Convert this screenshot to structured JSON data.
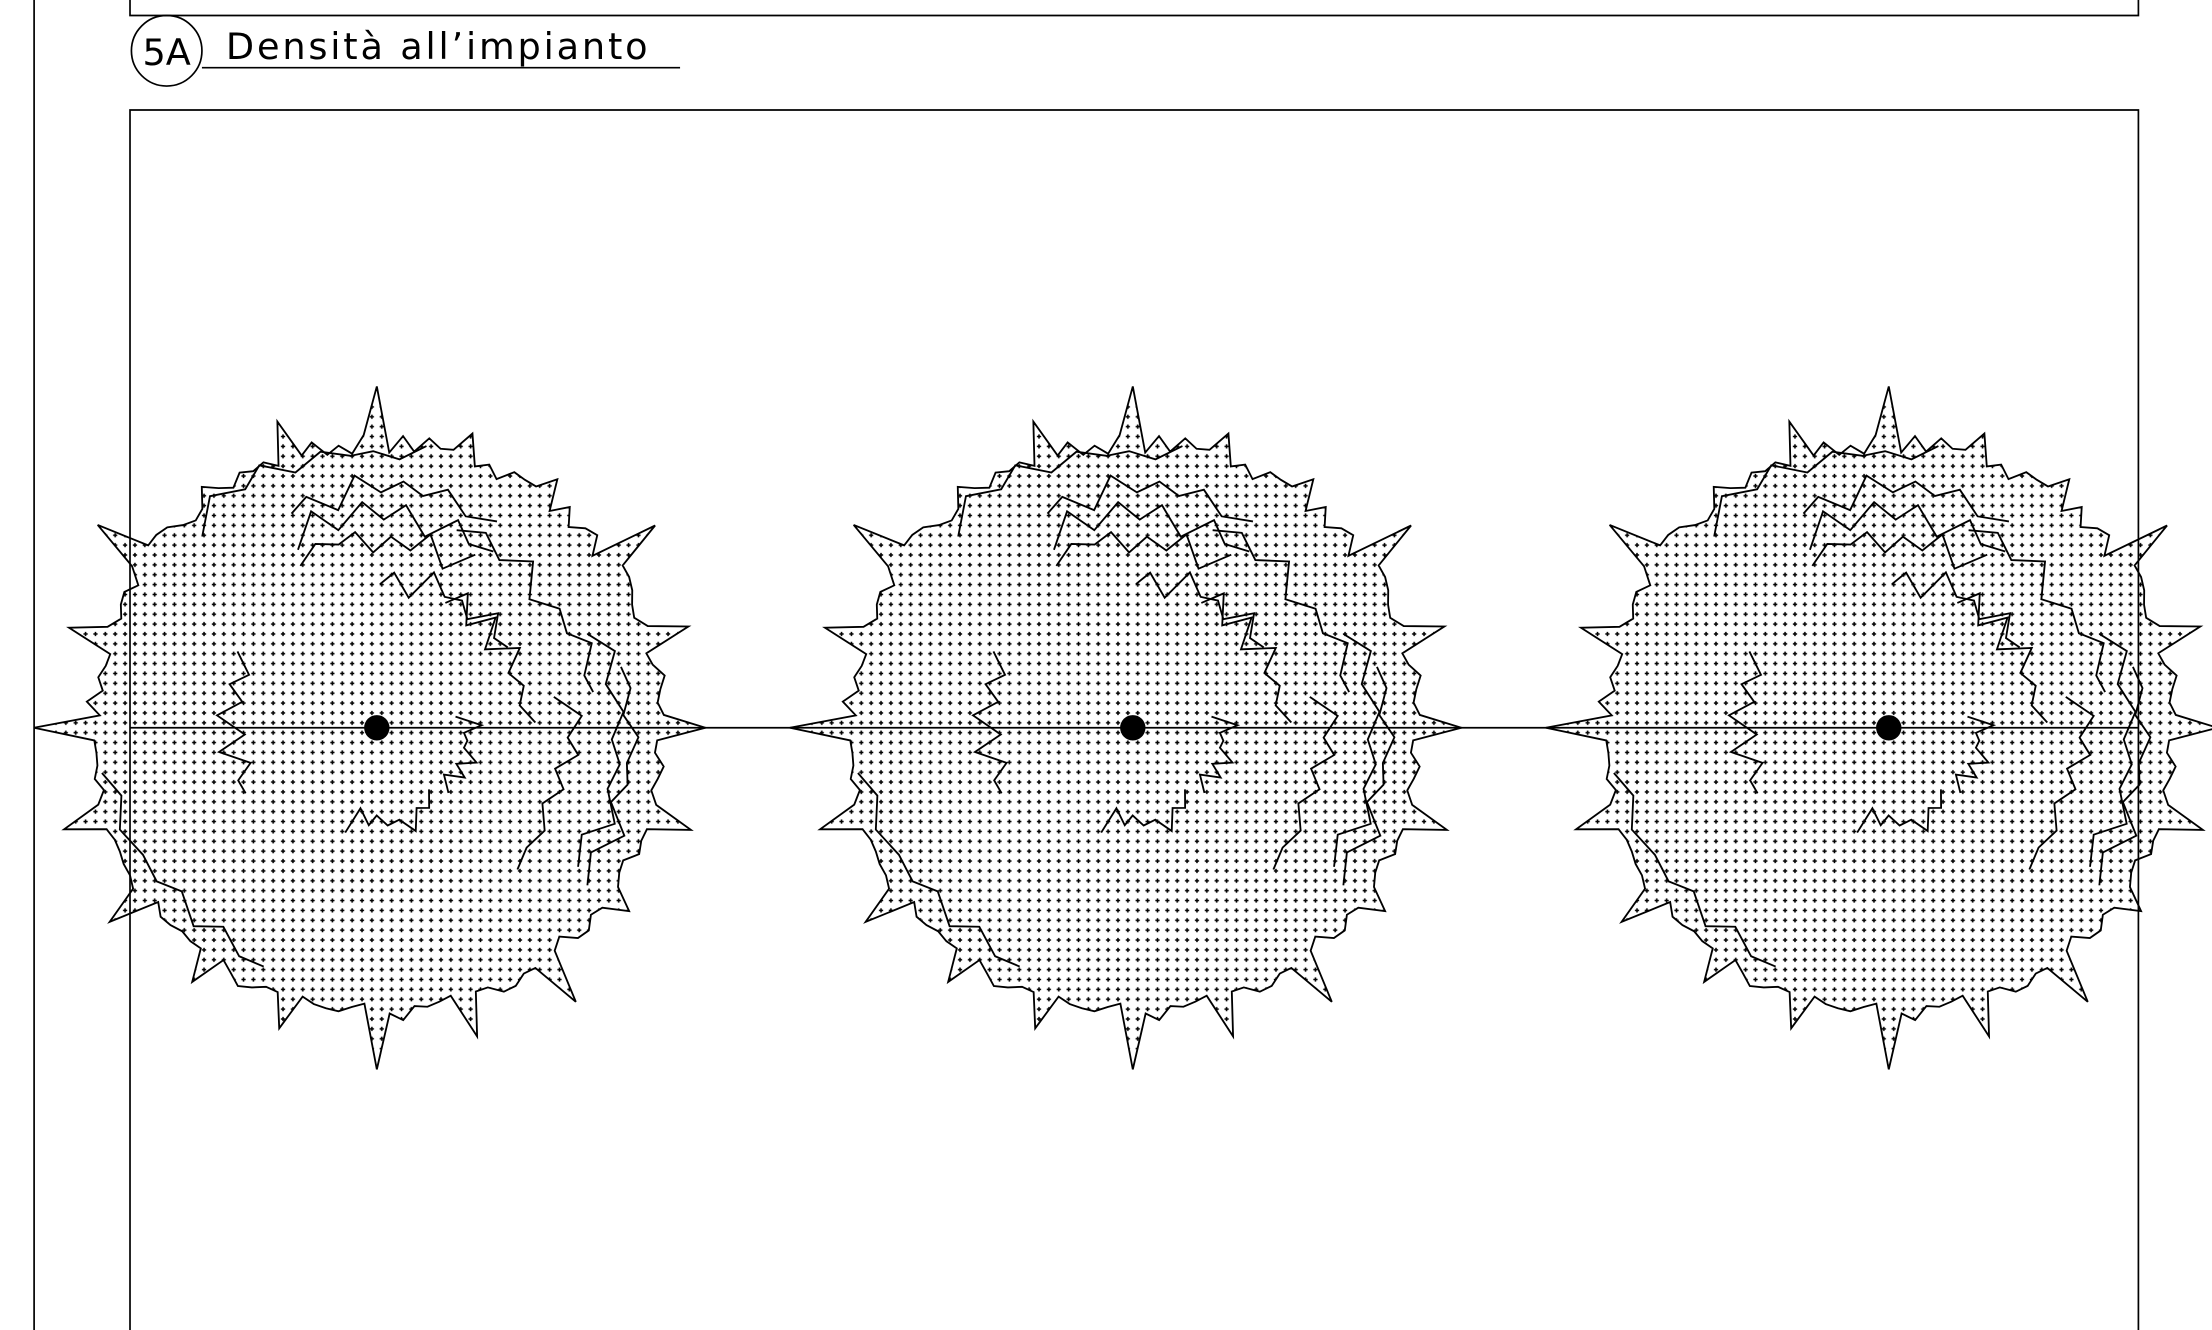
{
  "label": {
    "number": "5A",
    "title": "Densità all’impianto"
  }
}
